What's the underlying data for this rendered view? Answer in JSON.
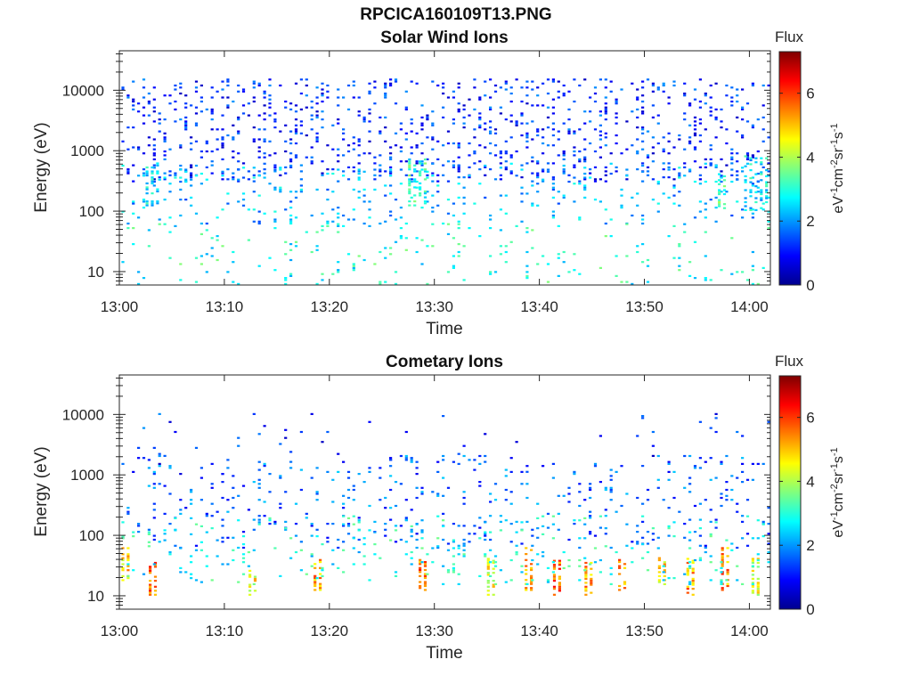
{
  "figure": {
    "filename": "RPCICA160109T13.PNG"
  },
  "panels": [
    {
      "title": "Solar Wind Ions",
      "xlabel": "Time",
      "ylabel": "Energy (eV)",
      "colorbar": {
        "title": "Flux",
        "unit_label": "eV-1cm-2sr-1s-1"
      }
    },
    {
      "title": "Cometary Ions",
      "xlabel": "Time",
      "ylabel": "Energy (eV)",
      "colorbar": {
        "title": "Flux",
        "unit_label": "eV-1cm-2sr-1s-1"
      }
    }
  ],
  "colors": {
    "colormap": [
      "#00008f",
      "#0000ff",
      "#007fff",
      "#00ffff",
      "#7fff7f",
      "#ffff00",
      "#ff7f00",
      "#ff0000",
      "#7f0000"
    ]
  },
  "chart_data": [
    {
      "type": "heatmap",
      "title": "Solar Wind Ions",
      "xlabel": "Time",
      "ylabel": "Energy (eV)",
      "x_tick_labels": [
        "13:00",
        "13:10",
        "13:20",
        "13:30",
        "13:40",
        "13:50",
        "14:00"
      ],
      "x_range_minutes": [
        0,
        62
      ],
      "y_scale": "log",
      "y_tick_labels": [
        "10",
        "100",
        "1000",
        "10000"
      ],
      "y_tick_values": [
        10,
        100,
        1000,
        10000
      ],
      "y_range": [
        6,
        45000
      ],
      "colorbar": {
        "title": "Flux",
        "range": [
          0,
          7.3
        ],
        "ticks": [
          0,
          2,
          4,
          6
        ]
      },
      "grid": false,
      "patches": [
        {
          "t": [
            0.2,
            62
          ],
          "e": [
            300,
            15000
          ],
          "v": 1.2,
          "d": 0.14
        },
        {
          "t": [
            0.2,
            62
          ],
          "e": [
            60,
            600
          ],
          "v": 2.2,
          "d": 0.08
        },
        {
          "t": [
            0.2,
            62
          ],
          "e": [
            6,
            60
          ],
          "v": 2.9,
          "d": 0.05
        },
        {
          "t": [
            2.5,
            4.0
          ],
          "e": [
            120,
            600
          ],
          "v": 2.6,
          "d": 0.35
        },
        {
          "t": [
            27.5,
            29.5
          ],
          "e": [
            120,
            700
          ],
          "v": 3.0,
          "d": 0.4
        },
        {
          "t": [
            57.0,
            58.0
          ],
          "e": [
            100,
            500
          ],
          "v": 3.3,
          "d": 0.35
        },
        {
          "t": [
            59.5,
            61.8
          ],
          "e": [
            100,
            800
          ],
          "v": 2.6,
          "d": 0.3
        }
      ]
    },
    {
      "type": "heatmap",
      "title": "Cometary Ions",
      "xlabel": "Time",
      "ylabel": "Energy (eV)",
      "x_tick_labels": [
        "13:00",
        "13:10",
        "13:20",
        "13:30",
        "13:40",
        "13:50",
        "14:00"
      ],
      "x_range_minutes": [
        0,
        62
      ],
      "y_scale": "log",
      "y_tick_labels": [
        "10",
        "100",
        "1000",
        "10000"
      ],
      "y_tick_values": [
        10,
        100,
        1000,
        10000
      ],
      "y_range": [
        6,
        45000
      ],
      "colorbar": {
        "title": "Flux",
        "range": [
          0,
          7.3
        ],
        "ticks": [
          0,
          2,
          4,
          6
        ]
      },
      "grid": false,
      "patches": [
        {
          "t": [
            0.2,
            62
          ],
          "e": [
            60,
            2000
          ],
          "v": 1.6,
          "d": 0.07
        },
        {
          "t": [
            0.2,
            62
          ],
          "e": [
            1000,
            10000
          ],
          "v": 1.2,
          "d": 0.015
        },
        {
          "t": [
            0.2,
            1.2
          ],
          "e": [
            15,
            60
          ],
          "v": 4.8,
          "d": 0.5
        },
        {
          "t": [
            2.8,
            3.6
          ],
          "e": [
            10,
            35
          ],
          "v": 5.6,
          "d": 0.55
        },
        {
          "t": [
            12.3,
            13.2
          ],
          "e": [
            10,
            30
          ],
          "v": 4.5,
          "d": 0.45
        },
        {
          "t": [
            18.5,
            19.3
          ],
          "e": [
            12,
            40
          ],
          "v": 5.2,
          "d": 0.5
        },
        {
          "t": [
            28.5,
            29.3
          ],
          "e": [
            12,
            40
          ],
          "v": 5.6,
          "d": 0.5
        },
        {
          "t": [
            35.0,
            35.8
          ],
          "e": [
            10,
            40
          ],
          "v": 4.4,
          "d": 0.45
        },
        {
          "t": [
            38.6,
            39.6
          ],
          "e": [
            12,
            60
          ],
          "v": 5.2,
          "d": 0.5
        },
        {
          "t": [
            41.3,
            42.3
          ],
          "e": [
            10,
            40
          ],
          "v": 5.6,
          "d": 0.55
        },
        {
          "t": [
            44.3,
            45.3
          ],
          "e": [
            10,
            35
          ],
          "v": 5.2,
          "d": 0.5
        },
        {
          "t": [
            47.5,
            48.5
          ],
          "e": [
            12,
            40
          ],
          "v": 5.3,
          "d": 0.5
        },
        {
          "t": [
            51.3,
            52.3
          ],
          "e": [
            15,
            45
          ],
          "v": 4.8,
          "d": 0.45
        },
        {
          "t": [
            54.0,
            54.8
          ],
          "e": [
            10,
            40
          ],
          "v": 5.3,
          "d": 0.5
        },
        {
          "t": [
            57.3,
            58.3
          ],
          "e": [
            12,
            60
          ],
          "v": 5.4,
          "d": 0.5
        },
        {
          "t": [
            60.2,
            61.2
          ],
          "e": [
            10,
            40
          ],
          "v": 4.3,
          "d": 0.45
        },
        {
          "t": [
            0.2,
            62
          ],
          "e": [
            15,
            200
          ],
          "v": 2.8,
          "d": 0.06
        }
      ]
    }
  ]
}
